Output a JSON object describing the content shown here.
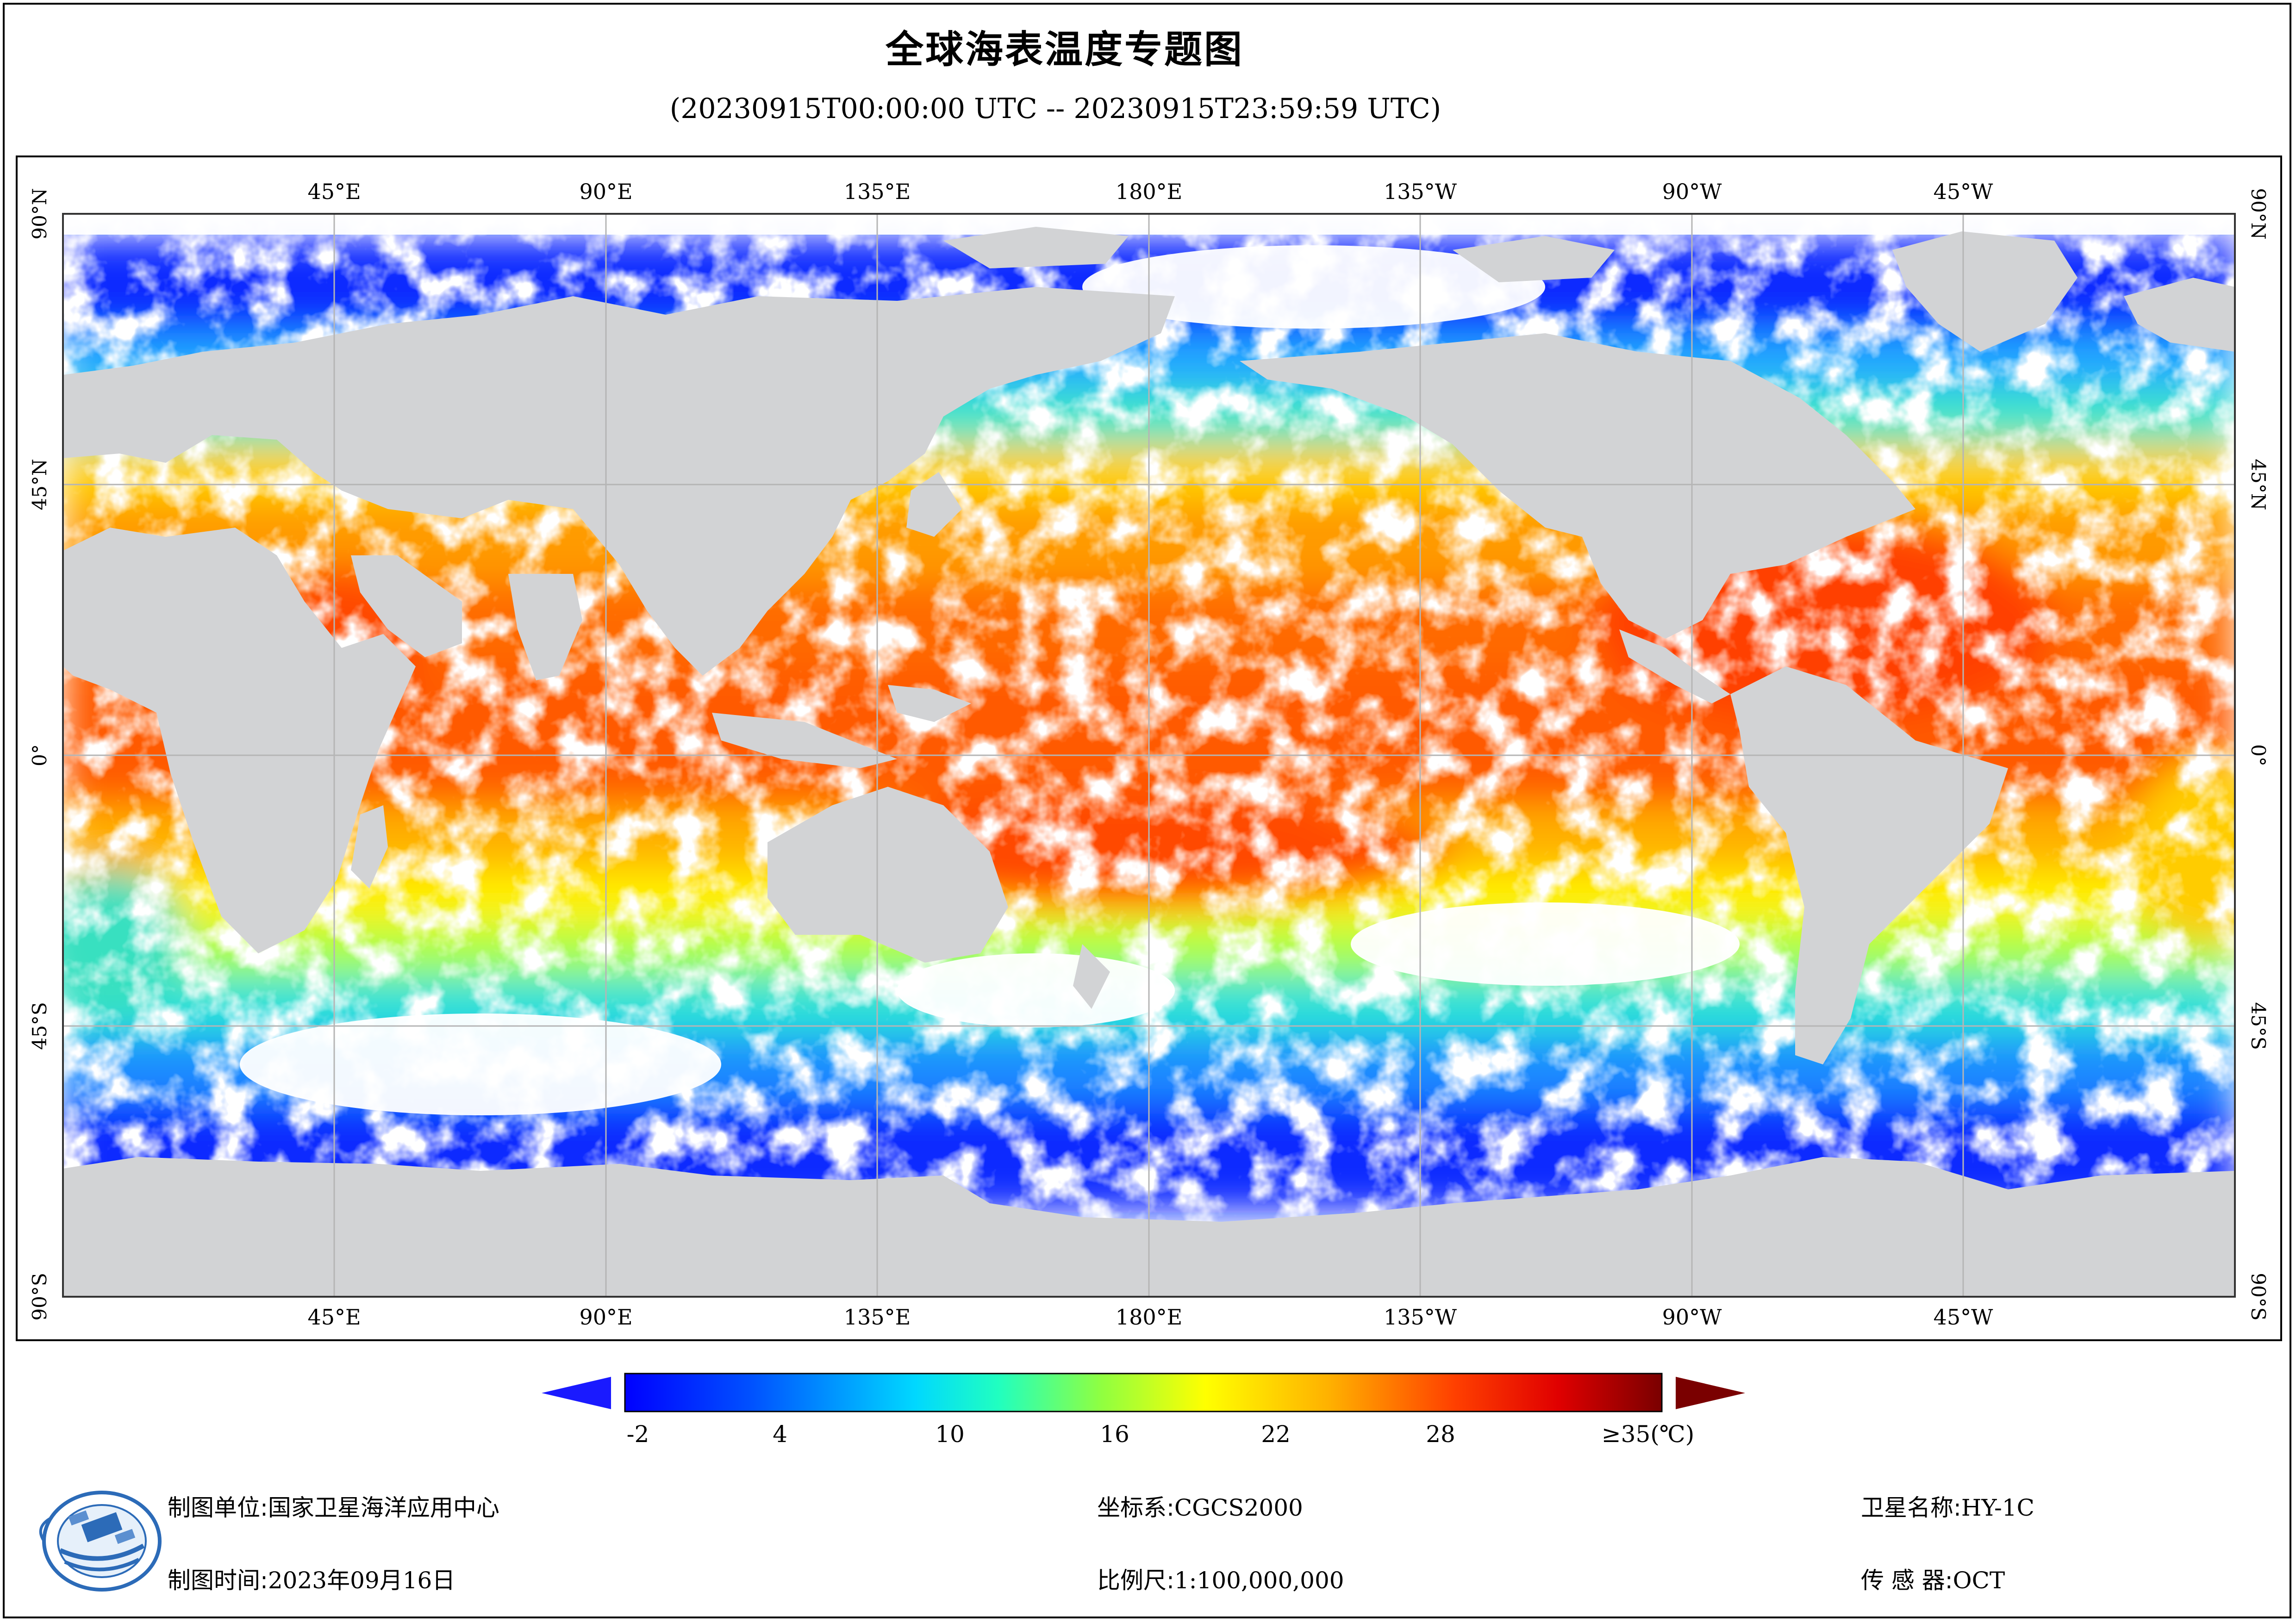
{
  "header": {
    "title": "全球海表温度专题图",
    "subtitle": "(20230915T00:00:00 UTC -- 20230915T23:59:59 UTC)"
  },
  "map": {
    "lon_labels": [
      "45°E",
      "90°E",
      "135°E",
      "180°E",
      "135°W",
      "90°W",
      "45°W"
    ],
    "lat_labels": [
      "90°N",
      "45°N",
      "0°",
      "45°S",
      "90°S"
    ],
    "colors": {
      "land": "#d2d3d5",
      "cloud": "#ffffff",
      "grid": "#b5b5b5"
    }
  },
  "legend": {
    "tick_labels": [
      "-2",
      "4",
      "10",
      "16",
      "22",
      "28",
      "≥35(℃)"
    ],
    "colors": {
      "low_arrow": "#1a1aff",
      "high_arrow": "#7a0000"
    }
  },
  "footer": {
    "unit_label": "制图单位:",
    "unit_value": "国家卫星海洋应用中心",
    "time_label": "制图时间:",
    "time_value": "2023年09月16日",
    "crs_label": "坐标系:",
    "crs_value": "CGCS2000",
    "scale_label": "比例尺:",
    "scale_value": "1:100,000,000",
    "satellite_label": "卫星名称:",
    "satellite_value": "HY-1C",
    "sensor_label": "传 感 器:",
    "sensor_value": "OCT"
  }
}
